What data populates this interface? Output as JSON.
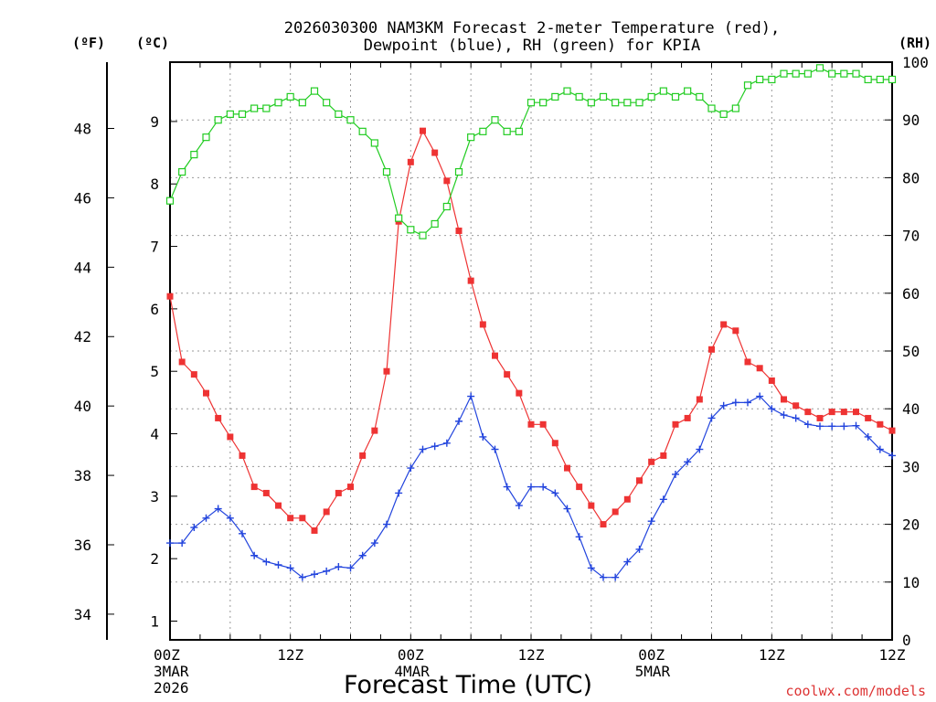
{
  "chart_data": {
    "type": "line",
    "title_line1": "2026030300 NAM3KM Forecast 2-meter Temperature (red),",
    "title_line2": "Dewpoint (blue), RH (green) for KPIA",
    "xlabel": "Forecast Time (UTC)",
    "credit": "coolwx.com/models",
    "unit_f": "(ºF)",
    "unit_c": "(ºC)",
    "unit_rh": "(RH)",
    "x_range_hours": [
      0,
      72
    ],
    "c_range": [
      0.7,
      9.95
    ],
    "rh_range": [
      0,
      100
    ],
    "x_ticks": [
      {
        "hour": 0,
        "label": "00Z",
        "sub1": "3MAR",
        "sub2": "2026"
      },
      {
        "hour": 12,
        "label": "12Z",
        "sub1": "",
        "sub2": ""
      },
      {
        "hour": 24,
        "label": "00Z",
        "sub1": "4MAR",
        "sub2": ""
      },
      {
        "hour": 36,
        "label": "12Z",
        "sub1": "",
        "sub2": ""
      },
      {
        "hour": 48,
        "label": "00Z",
        "sub1": "5MAR",
        "sub2": ""
      },
      {
        "hour": 60,
        "label": "12Z",
        "sub1": "",
        "sub2": ""
      }
    ],
    "c_ticks": [
      "1",
      "2",
      "3",
      "4",
      "5",
      "6",
      "7",
      "8",
      "9"
    ],
    "f_ticks": [
      "34",
      "36",
      "38",
      "40",
      "42",
      "44",
      "46",
      "48"
    ],
    "rh_ticks": [
      "0",
      "10",
      "20",
      "30",
      "40",
      "50",
      "60",
      "70",
      "80",
      "90",
      "100"
    ],
    "series": [
      {
        "name": "Temperature",
        "unit": "C",
        "color": "#ee3333",
        "marker": "filled-square",
        "values": [
          6.2,
          5.15,
          4.95,
          4.65,
          4.25,
          3.95,
          3.65,
          3.15,
          3.05,
          2.85,
          2.65,
          2.65,
          2.45,
          2.75,
          3.05,
          3.15,
          3.65,
          4.05,
          5.0,
          7.4,
          8.35,
          8.85,
          8.5,
          8.05,
          7.25,
          6.45,
          5.75,
          5.25,
          4.95,
          4.65,
          4.15,
          4.15,
          3.85,
          3.45,
          3.15,
          2.85,
          2.55,
          2.75,
          2.95,
          3.25,
          3.55,
          3.65,
          4.15,
          4.25,
          4.55,
          5.35,
          5.75,
          5.65,
          5.15,
          5.05,
          4.85,
          4.55,
          4.45,
          4.35,
          4.25,
          4.35,
          4.35,
          4.35,
          4.25,
          4.15,
          4.05
        ]
      },
      {
        "name": "Dewpoint",
        "unit": "C",
        "color": "#2244dd",
        "marker": "plus",
        "values": [
          2.25,
          2.25,
          2.5,
          2.65,
          2.8,
          2.65,
          2.4,
          2.05,
          1.95,
          1.9,
          1.85,
          1.7,
          1.75,
          1.8,
          1.87,
          1.85,
          2.05,
          2.25,
          2.55,
          3.05,
          3.45,
          3.75,
          3.8,
          3.85,
          4.2,
          4.6,
          3.95,
          3.75,
          3.15,
          2.85,
          3.15,
          3.15,
          3.05,
          2.8,
          2.35,
          1.85,
          1.7,
          1.7,
          1.95,
          2.15,
          2.6,
          2.95,
          3.35,
          3.55,
          3.75,
          4.25,
          4.45,
          4.5,
          4.5,
          4.6,
          4.4,
          4.3,
          4.25,
          4.15,
          4.12,
          4.12,
          4.12,
          4.13,
          3.95,
          3.75,
          3.65
        ]
      },
      {
        "name": "RH",
        "unit": "%",
        "color": "#22cc22",
        "marker": "open-square",
        "values": [
          76,
          81,
          84,
          87,
          90,
          91,
          91,
          92,
          92,
          93,
          94,
          93,
          95,
          93,
          91,
          90,
          88,
          86,
          81,
          73,
          71,
          70,
          72,
          75,
          81,
          87,
          88,
          90,
          88,
          88,
          93,
          93,
          94,
          95,
          94,
          93,
          94,
          93,
          93,
          93,
          94,
          95,
          94,
          95,
          94,
          92,
          91,
          92,
          96,
          97,
          97,
          98,
          98,
          98,
          99,
          98,
          98,
          98,
          97,
          97,
          97
        ]
      }
    ]
  }
}
